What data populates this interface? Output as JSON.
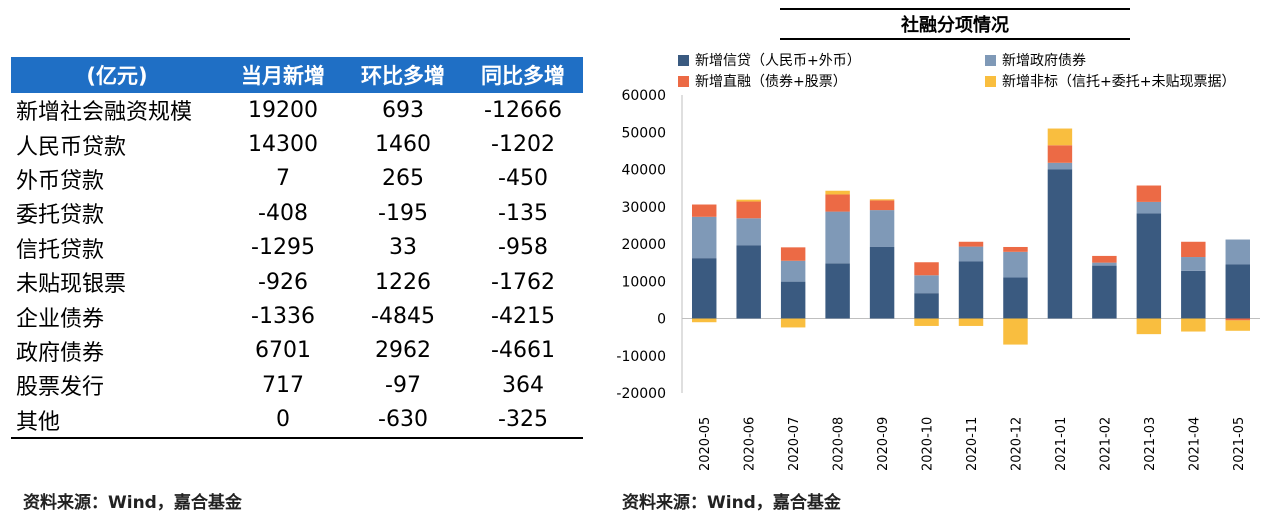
{
  "table": {
    "headers": [
      "(亿元)",
      "当月新增",
      "环比多增",
      "同比多增"
    ],
    "rows": [
      [
        "新增社会融资规模",
        "19200",
        "693",
        "-12666"
      ],
      [
        "人民币贷款",
        "14300",
        "1460",
        "-1202"
      ],
      [
        "外币贷款",
        "7",
        "265",
        "-450"
      ],
      [
        "委托贷款",
        "-408",
        "-195",
        "-135"
      ],
      [
        "信托贷款",
        "-1295",
        "33",
        "-958"
      ],
      [
        "未贴现银票",
        "-926",
        "1226",
        "-1762"
      ],
      [
        "企业债券",
        "-1336",
        "-4845",
        "-4215"
      ],
      [
        "政府债券",
        "6701",
        "2962",
        "-4661"
      ],
      [
        "股票发行",
        "717",
        "-97",
        "364"
      ],
      [
        "其他",
        "0",
        "-630",
        "-325"
      ]
    ]
  },
  "left_source": "资料来源：Wind，嘉合基金",
  "right_source": "资料来源：Wind，嘉合基金",
  "chart_data": {
    "type": "bar",
    "stacked": true,
    "title": "社融分项情况",
    "categories": [
      "2020-05",
      "2020-06",
      "2020-07",
      "2020-08",
      "2020-09",
      "2020-10",
      "2020-11",
      "2020-12",
      "2021-01",
      "2021-02",
      "2021-03",
      "2021-04",
      "2021-05"
    ],
    "series": [
      {
        "name": "新增信贷（人民币+外币）",
        "color": "#3A5A80",
        "values": [
          16200,
          19600,
          9900,
          14800,
          19200,
          6800,
          15300,
          11000,
          40000,
          14200,
          28200,
          12800,
          14500
        ]
      },
      {
        "name": "新增政府债券",
        "color": "#7F99B7",
        "values": [
          11100,
          7300,
          5600,
          13900,
          9900,
          4800,
          4000,
          6900,
          1800,
          800,
          3100,
          3700,
          6700
        ]
      },
      {
        "name": "新增直融（债券+股票）",
        "color": "#EC6A45",
        "values": [
          3300,
          4500,
          3600,
          4600,
          2600,
          3500,
          1300,
          1300,
          4700,
          1800,
          4400,
          4100,
          -500
        ]
      },
      {
        "name": "新增非标（信托+委托+未贴现票据）",
        "color": "#F9BE3F",
        "values": [
          -1000,
          500,
          -2400,
          1000,
          300,
          -2000,
          -2000,
          -7000,
          4500,
          0,
          -4200,
          -3500,
          -2800
        ]
      }
    ],
    "yticks": [
      "60000",
      "50000",
      "40000",
      "30000",
      "20000",
      "10000",
      "0",
      "-10000",
      "-20000"
    ],
    "ylim": [
      -20000,
      60000
    ],
    "legend_position": "top"
  }
}
